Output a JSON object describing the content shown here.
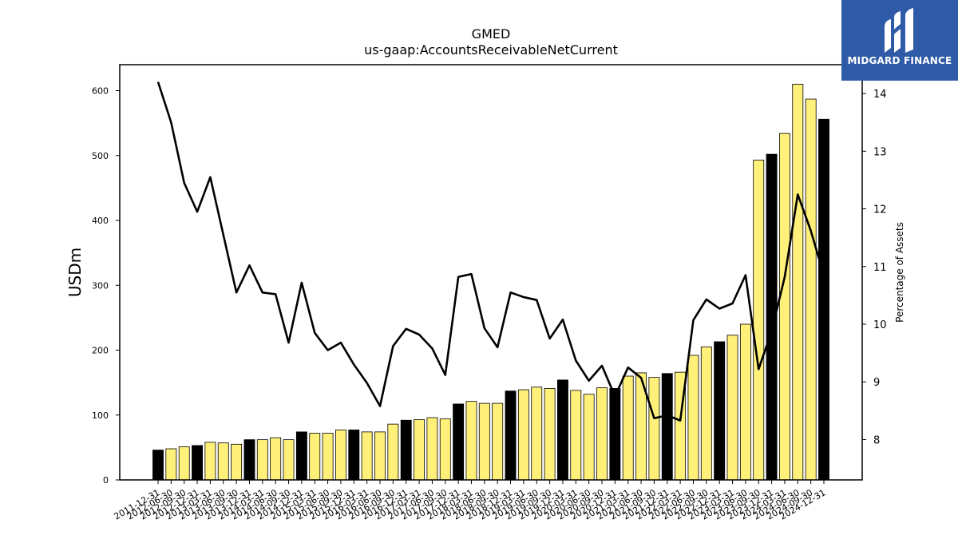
{
  "logo": {
    "text": "MIDGARD FINANCE"
  },
  "chart_data": {
    "type": "bar",
    "title": "GMED",
    "subtitle": "us-gaap:AccountsReceivableNetCurrent",
    "ylabel": "USDm",
    "y2label": "Percentage of Assets",
    "ylim": [
      0,
      640
    ],
    "y2lim": [
      7.3,
      14.5
    ],
    "yticks": [
      0,
      100,
      200,
      300,
      400,
      500,
      600
    ],
    "y2ticks": [
      8,
      9,
      10,
      11,
      12,
      13,
      14
    ],
    "colors": {
      "bar_q4": "#000000",
      "bar_other": "#fff07a",
      "bar_edge": "#000000",
      "line": "#000000"
    },
    "categories": [
      "2011-12-31",
      "2012-06-30",
      "2012-09-30",
      "2012-12-31",
      "2013-03-31",
      "2013-06-30",
      "2013-09-30",
      "2013-12-31",
      "2014-03-31",
      "2014-06-30",
      "2014-09-30",
      "2014-12-31",
      "2015-03-31",
      "2015-06-30",
      "2015-09-30",
      "2015-12-31",
      "2016-03-31",
      "2016-06-30",
      "2016-09-30",
      "2016-12-31",
      "2017-03-31",
      "2017-06-30",
      "2017-09-30",
      "2017-12-31",
      "2018-03-31",
      "2018-06-30",
      "2018-09-30",
      "2018-12-31",
      "2019-03-31",
      "2019-06-30",
      "2019-09-30",
      "2019-12-31",
      "2020-03-31",
      "2020-06-30",
      "2020-09-30",
      "2020-12-31",
      "2021-03-31",
      "2021-06-30",
      "2021-09-30",
      "2021-12-31",
      "2022-03-31",
      "2022-06-30",
      "2022-09-30",
      "2022-12-31",
      "2023-03-31",
      "2023-06-30",
      "2023-09-30",
      "2023-12-31",
      "2024-03-31",
      "2024-06-30",
      "2024-09-30",
      "2024-12-31"
    ],
    "tick_labels": [
      "2011-12-31",
      "2012-06-30",
      "2012-09-30",
      "2012-12-31",
      "2013-03-31",
      "2013-06-30",
      "2013-09-30",
      "2013-12-31",
      "2014-03-31",
      "2014-06-30",
      "2014-09-30",
      "2014-12-31",
      "2015-03-31",
      "2015-06-30",
      "2015-09-30",
      "2015-12-31",
      "2016-03-31",
      "2016-06-30",
      "2016-09-30",
      "2016-12-31",
      "2017-03-31",
      "2017-06-30",
      "2017-09-30",
      "2017-12-31",
      "2018-03-31",
      "2018-06-30",
      "2018-09-30",
      "2018-12-31",
      "2019-03-31",
      "2019-06-30",
      "2019-09-30",
      "2019-12-31",
      "2020-03-31",
      "2020-06-30",
      "2020-09-30",
      "2020-12-31",
      "2021-03-31",
      "2021-06-30",
      "2021-09-30",
      "2021-12-31",
      "2022-03-31",
      "2022-06-30",
      "2022-09-30",
      "2022-12-31",
      "2023-03-31",
      "2023-06-30",
      "2023-09-30",
      "2023-12-31",
      "2024-03-31",
      "2024-06-30",
      "2024-09-30",
      "2024-12-31"
    ],
    "series": [
      {
        "type": "bar",
        "axis": "left",
        "values": [
          46,
          48,
          51,
          53,
          58,
          57,
          55,
          62,
          62,
          65,
          62,
          74,
          72,
          72,
          77,
          77,
          74,
          74,
          86,
          92,
          93,
          96,
          94,
          117,
          121,
          118,
          118,
          137,
          139,
          143,
          141,
          154,
          138,
          132,
          142,
          141,
          160,
          165,
          158,
          164,
          166,
          192,
          205,
          213,
          223,
          240,
          493,
          502,
          534,
          610,
          587,
          556
        ],
        "year_end": [
          true,
          false,
          false,
          true,
          false,
          false,
          false,
          true,
          false,
          false,
          false,
          true,
          false,
          false,
          false,
          true,
          false,
          false,
          false,
          true,
          false,
          false,
          false,
          true,
          false,
          false,
          false,
          true,
          false,
          false,
          false,
          true,
          false,
          false,
          false,
          true,
          false,
          false,
          false,
          true,
          false,
          false,
          false,
          true,
          false,
          false,
          false,
          true,
          false,
          false,
          false,
          true
        ]
      },
      {
        "type": "line",
        "axis": "right",
        "values": [
          14.2,
          13.5,
          12.45,
          11.95,
          12.55,
          11.55,
          10.55,
          11.02,
          10.55,
          10.52,
          9.68,
          10.72,
          9.85,
          9.55,
          9.68,
          9.3,
          8.98,
          8.58,
          9.62,
          9.92,
          9.82,
          9.58,
          9.12,
          10.82,
          10.87,
          9.93,
          9.6,
          10.55,
          10.47,
          10.42,
          9.75,
          10.08,
          9.37,
          9.02,
          9.28,
          8.75,
          9.25,
          9.07,
          8.37,
          8.42,
          8.33,
          10.07,
          10.43,
          10.27,
          10.36,
          10.85,
          9.22,
          9.88,
          10.82,
          12.25,
          11.62,
          10.85
        ]
      }
    ]
  }
}
